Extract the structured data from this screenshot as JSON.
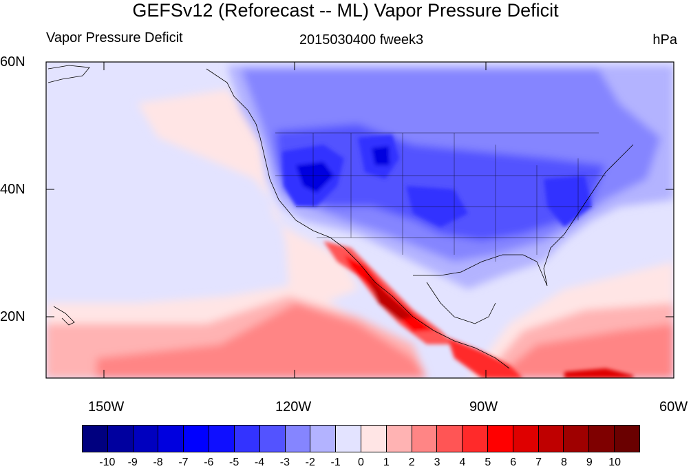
{
  "title": "GEFSv12 (Reforecast -- ML) Vapor Pressure Deficit",
  "left_label": "Vapor Pressure Deficit",
  "center_label": "2015030400 fweek3",
  "units_label": "hPa",
  "map": {
    "projection": "cylindrical equidistant",
    "lon_range": [
      -159,
      -60
    ],
    "lat_range": [
      10,
      60
    ],
    "lat_ticks": [
      {
        "lat": 60,
        "label": "60N"
      },
      {
        "lat": 40,
        "label": "40N"
      },
      {
        "lat": 20,
        "label": "20N"
      }
    ],
    "lon_ticks": [
      {
        "lon": -150,
        "label": "150W"
      },
      {
        "lon": -120,
        "label": "120W"
      },
      {
        "lon": -90,
        "label": "90W"
      },
      {
        "lon": -60,
        "label": "60W"
      }
    ],
    "features": [
      "coastlines",
      "US state boundaries",
      "filled contours of vapor pressure deficit anomaly"
    ]
  },
  "colorbar": {
    "labels": [
      "-10",
      "-9",
      "-8",
      "-7",
      "-6",
      "-5",
      "-4",
      "-3",
      "-2",
      "-1",
      "0",
      "1",
      "2",
      "3",
      "4",
      "5",
      "6",
      "7",
      "8",
      "9",
      "10"
    ],
    "colors": [
      "#00007f",
      "#00009f",
      "#0000bf",
      "#0000df",
      "#0000ff",
      "#0f0fff",
      "#3333ff",
      "#5353ff",
      "#8585ff",
      "#b3b3ff",
      "#e3e3ff",
      "#ffe5e5",
      "#ffb3b3",
      "#ff8585",
      "#ff5555",
      "#ff2a2a",
      "#ff0000",
      "#df0000",
      "#bf0000",
      "#9f0000",
      "#7f0000",
      "#6a0000"
    ]
  }
}
